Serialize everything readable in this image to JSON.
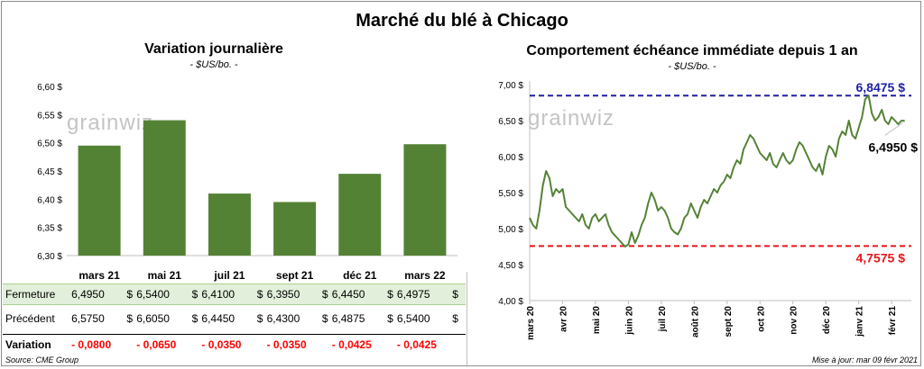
{
  "title": "Marché du blé à Chicago",
  "left": {
    "title": "Variation  journalière",
    "subtitle": "- $US/bo. -",
    "watermark": "grainwiz"
  },
  "right": {
    "title": "Comportement  échéance immédiate depuis 1 an",
    "subtitle": "- $US/bo. -",
    "watermark": "grainwiz"
  },
  "table": {
    "rows": [
      {
        "label": "Fermeture",
        "values": [
          "6,4950",
          "6,5400",
          "6,4100",
          "6,3950",
          "6,4450",
          "6,4975"
        ]
      },
      {
        "label": "Précédent",
        "values": [
          "6,5750",
          "6,6050",
          "6,4450",
          "6,4300",
          "6,4875",
          "6,5400"
        ]
      },
      {
        "label": "Variation",
        "values": [
          "- 0,0800",
          "- 0,0650",
          "- 0,0350",
          "- 0,0350",
          "- 0,0425",
          "- 0,0425"
        ]
      }
    ],
    "currency": "$"
  },
  "source": "Source: CME Group",
  "updated": "Mise à jour: mar 09 févr 2021",
  "colors": {
    "bar": "#548235",
    "line": "#548235",
    "high": "#1f1fa6",
    "low": "#e8151b",
    "row_highlight": "#e2efda"
  },
  "chart_data": [
    {
      "type": "bar",
      "title": "Variation  journalière",
      "categories": [
        "mars 21",
        "mai 21",
        "juil 21",
        "sept 21",
        "déc 21",
        "mars 22"
      ],
      "values": [
        6.495,
        6.54,
        6.41,
        6.395,
        6.445,
        6.4975
      ],
      "ylim": [
        6.3,
        6.6
      ],
      "yticks": [
        "6,30 $",
        "6,35 $",
        "6,40 $",
        "6,45 $",
        "6,50 $",
        "6,55 $",
        "6,60 $"
      ],
      "grid": false
    },
    {
      "type": "line",
      "title": "Comportement  échéance immédiate depuis 1 an",
      "ylim": [
        4.0,
        7.0
      ],
      "yticks": [
        "4,00 $",
        "4,50 $",
        "5,00 $",
        "5,50 $",
        "6,00 $",
        "6,50 $",
        "7,00 $"
      ],
      "xticks": [
        "mars 20",
        "avr 20",
        "mai 20",
        "juin 20",
        "juil 20",
        "août 20",
        "sept 20",
        "oct 20",
        "nov 20",
        "déc 20",
        "janv 21",
        "févr 21"
      ],
      "x_months": [
        0,
        0.1,
        0.2,
        0.3,
        0.4,
        0.5,
        0.6,
        0.7,
        0.8,
        0.9,
        1.0,
        1.1,
        1.2,
        1.3,
        1.4,
        1.5,
        1.6,
        1.7,
        1.8,
        1.9,
        2.0,
        2.1,
        2.2,
        2.3,
        2.4,
        2.5,
        2.6,
        2.7,
        2.8,
        2.9,
        3.0,
        3.1,
        3.2,
        3.3,
        3.4,
        3.5,
        3.6,
        3.7,
        3.8,
        3.9,
        4.0,
        4.1,
        4.2,
        4.3,
        4.4,
        4.5,
        4.6,
        4.7,
        4.8,
        4.9,
        5.0,
        5.1,
        5.2,
        5.3,
        5.4,
        5.5,
        5.6,
        5.7,
        5.8,
        5.9,
        6.0,
        6.1,
        6.2,
        6.3,
        6.4,
        6.5,
        6.6,
        6.7,
        6.8,
        6.9,
        7.0,
        7.1,
        7.2,
        7.3,
        7.4,
        7.5,
        7.6,
        7.7,
        7.8,
        7.9,
        8.0,
        8.1,
        8.2,
        8.3,
        8.4,
        8.5,
        8.6,
        8.7,
        8.8,
        8.9,
        9.0,
        9.1,
        9.2,
        9.3,
        9.4,
        9.5,
        9.6,
        9.7,
        9.8,
        9.9,
        10.0,
        10.1,
        10.2,
        10.3,
        10.4,
        10.5,
        10.6,
        10.7,
        10.8,
        10.9,
        11.0,
        11.1,
        11.2,
        11.3,
        11.4
      ],
      "values": [
        5.15,
        5.05,
        5.0,
        5.25,
        5.6,
        5.8,
        5.7,
        5.45,
        5.55,
        5.5,
        5.55,
        5.3,
        5.25,
        5.2,
        5.15,
        5.1,
        5.2,
        5.05,
        5.0,
        5.15,
        5.2,
        5.1,
        5.15,
        5.2,
        5.05,
        4.95,
        4.9,
        4.85,
        4.8,
        4.75,
        4.78,
        4.95,
        4.8,
        4.9,
        5.05,
        5.15,
        5.35,
        5.5,
        5.4,
        5.25,
        5.3,
        5.25,
        5.15,
        5.0,
        4.95,
        4.92,
        5.0,
        5.15,
        5.2,
        5.35,
        5.25,
        5.15,
        5.3,
        5.4,
        5.35,
        5.45,
        5.55,
        5.5,
        5.6,
        5.65,
        5.75,
        5.7,
        5.85,
        5.95,
        5.9,
        6.1,
        6.2,
        6.3,
        6.25,
        6.15,
        6.05,
        6.0,
        5.95,
        6.05,
        5.9,
        5.85,
        5.95,
        6.05,
        5.95,
        5.9,
        5.95,
        6.1,
        6.2,
        6.15,
        6.05,
        5.95,
        5.85,
        5.8,
        5.9,
        5.75,
        6.0,
        6.15,
        6.1,
        6.0,
        6.25,
        6.35,
        6.3,
        6.5,
        6.3,
        6.25,
        6.4,
        6.55,
        6.8,
        6.85,
        6.6,
        6.5,
        6.55,
        6.65,
        6.5,
        6.45,
        6.55,
        6.5,
        6.45,
        6.5,
        6.495
      ],
      "high": {
        "value": 6.8475,
        "label": "6,8475 $"
      },
      "low": {
        "value": 4.7575,
        "label": "4,7575 $"
      },
      "last": {
        "value": 6.495,
        "label": "6,4950 $"
      }
    }
  ]
}
